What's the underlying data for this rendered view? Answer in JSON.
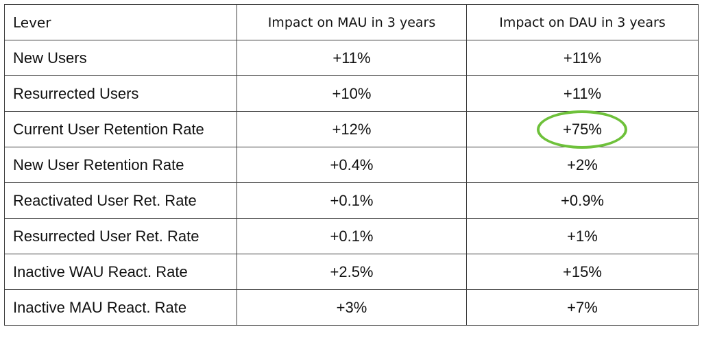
{
  "table": {
    "headers": [
      "Lever",
      "Impact on MAU in 3 years",
      "Impact on DAU in 3 years"
    ],
    "rows": [
      {
        "lever": "New Users",
        "mau": "+11%",
        "dau": "+11%"
      },
      {
        "lever": "Resurrected Users",
        "mau": "+10%",
        "dau": "+11%"
      },
      {
        "lever": "Current User Retention Rate",
        "mau": "+12%",
        "dau": "+75%"
      },
      {
        "lever": "New User Retention Rate",
        "mau": "+0.4%",
        "dau": "+2%"
      },
      {
        "lever": "Reactivated User Ret. Rate",
        "mau": "+0.1%",
        "dau": "+0.9%"
      },
      {
        "lever": "Resurrected User Ret. Rate",
        "mau": "+0.1%",
        "dau": "+1%"
      },
      {
        "lever": "Inactive WAU React. Rate",
        "mau": "+2.5%",
        "dau": "+15%"
      },
      {
        "lever": "Inactive MAU React. Rate",
        "mau": "+3%",
        "dau": "+7%"
      }
    ]
  },
  "highlight": {
    "row_index": 2,
    "column": "dau",
    "color": "#6ec13b"
  },
  "colors": {
    "border": "#3a3a3a",
    "text": "#111111",
    "background": "#ffffff"
  }
}
